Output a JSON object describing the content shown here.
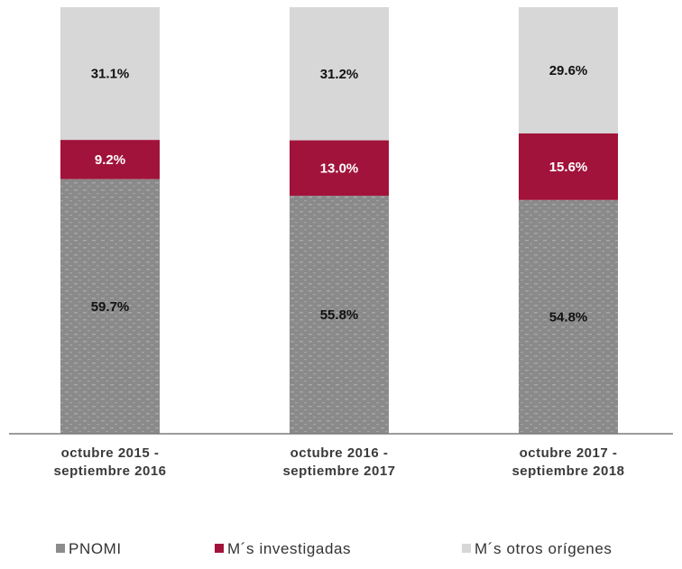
{
  "chart_data": {
    "type": "bar",
    "stacked": true,
    "percent_stacked": true,
    "categories": [
      [
        "octubre 2015 -",
        "septiembre 2016"
      ],
      [
        "octubre 2016 -",
        "septiembre 2017"
      ],
      [
        "octubre 2017 -",
        "septiembre 2018"
      ]
    ],
    "series": [
      {
        "name": "PNOMI",
        "values": [
          59.7,
          55.8,
          54.8
        ],
        "labels": [
          "59.7%",
          "55.8%",
          "54.8%"
        ],
        "color": "#8c8c8c",
        "pattern": "dotted"
      },
      {
        "name": "M´s investigadas",
        "values": [
          9.2,
          13.0,
          15.6
        ],
        "labels": [
          "9.2%",
          "13.0%",
          "15.6%"
        ],
        "color": "#a1133a"
      },
      {
        "name": "M´s otros orígenes",
        "values": [
          31.1,
          31.2,
          29.6
        ],
        "labels": [
          "31.1%",
          "31.2%",
          "29.6%"
        ],
        "color": "#d7d7d7"
      }
    ],
    "ylim": [
      0,
      100
    ],
    "grid": false,
    "legend": "bottom",
    "title": "",
    "xlabel": "",
    "ylabel": ""
  }
}
